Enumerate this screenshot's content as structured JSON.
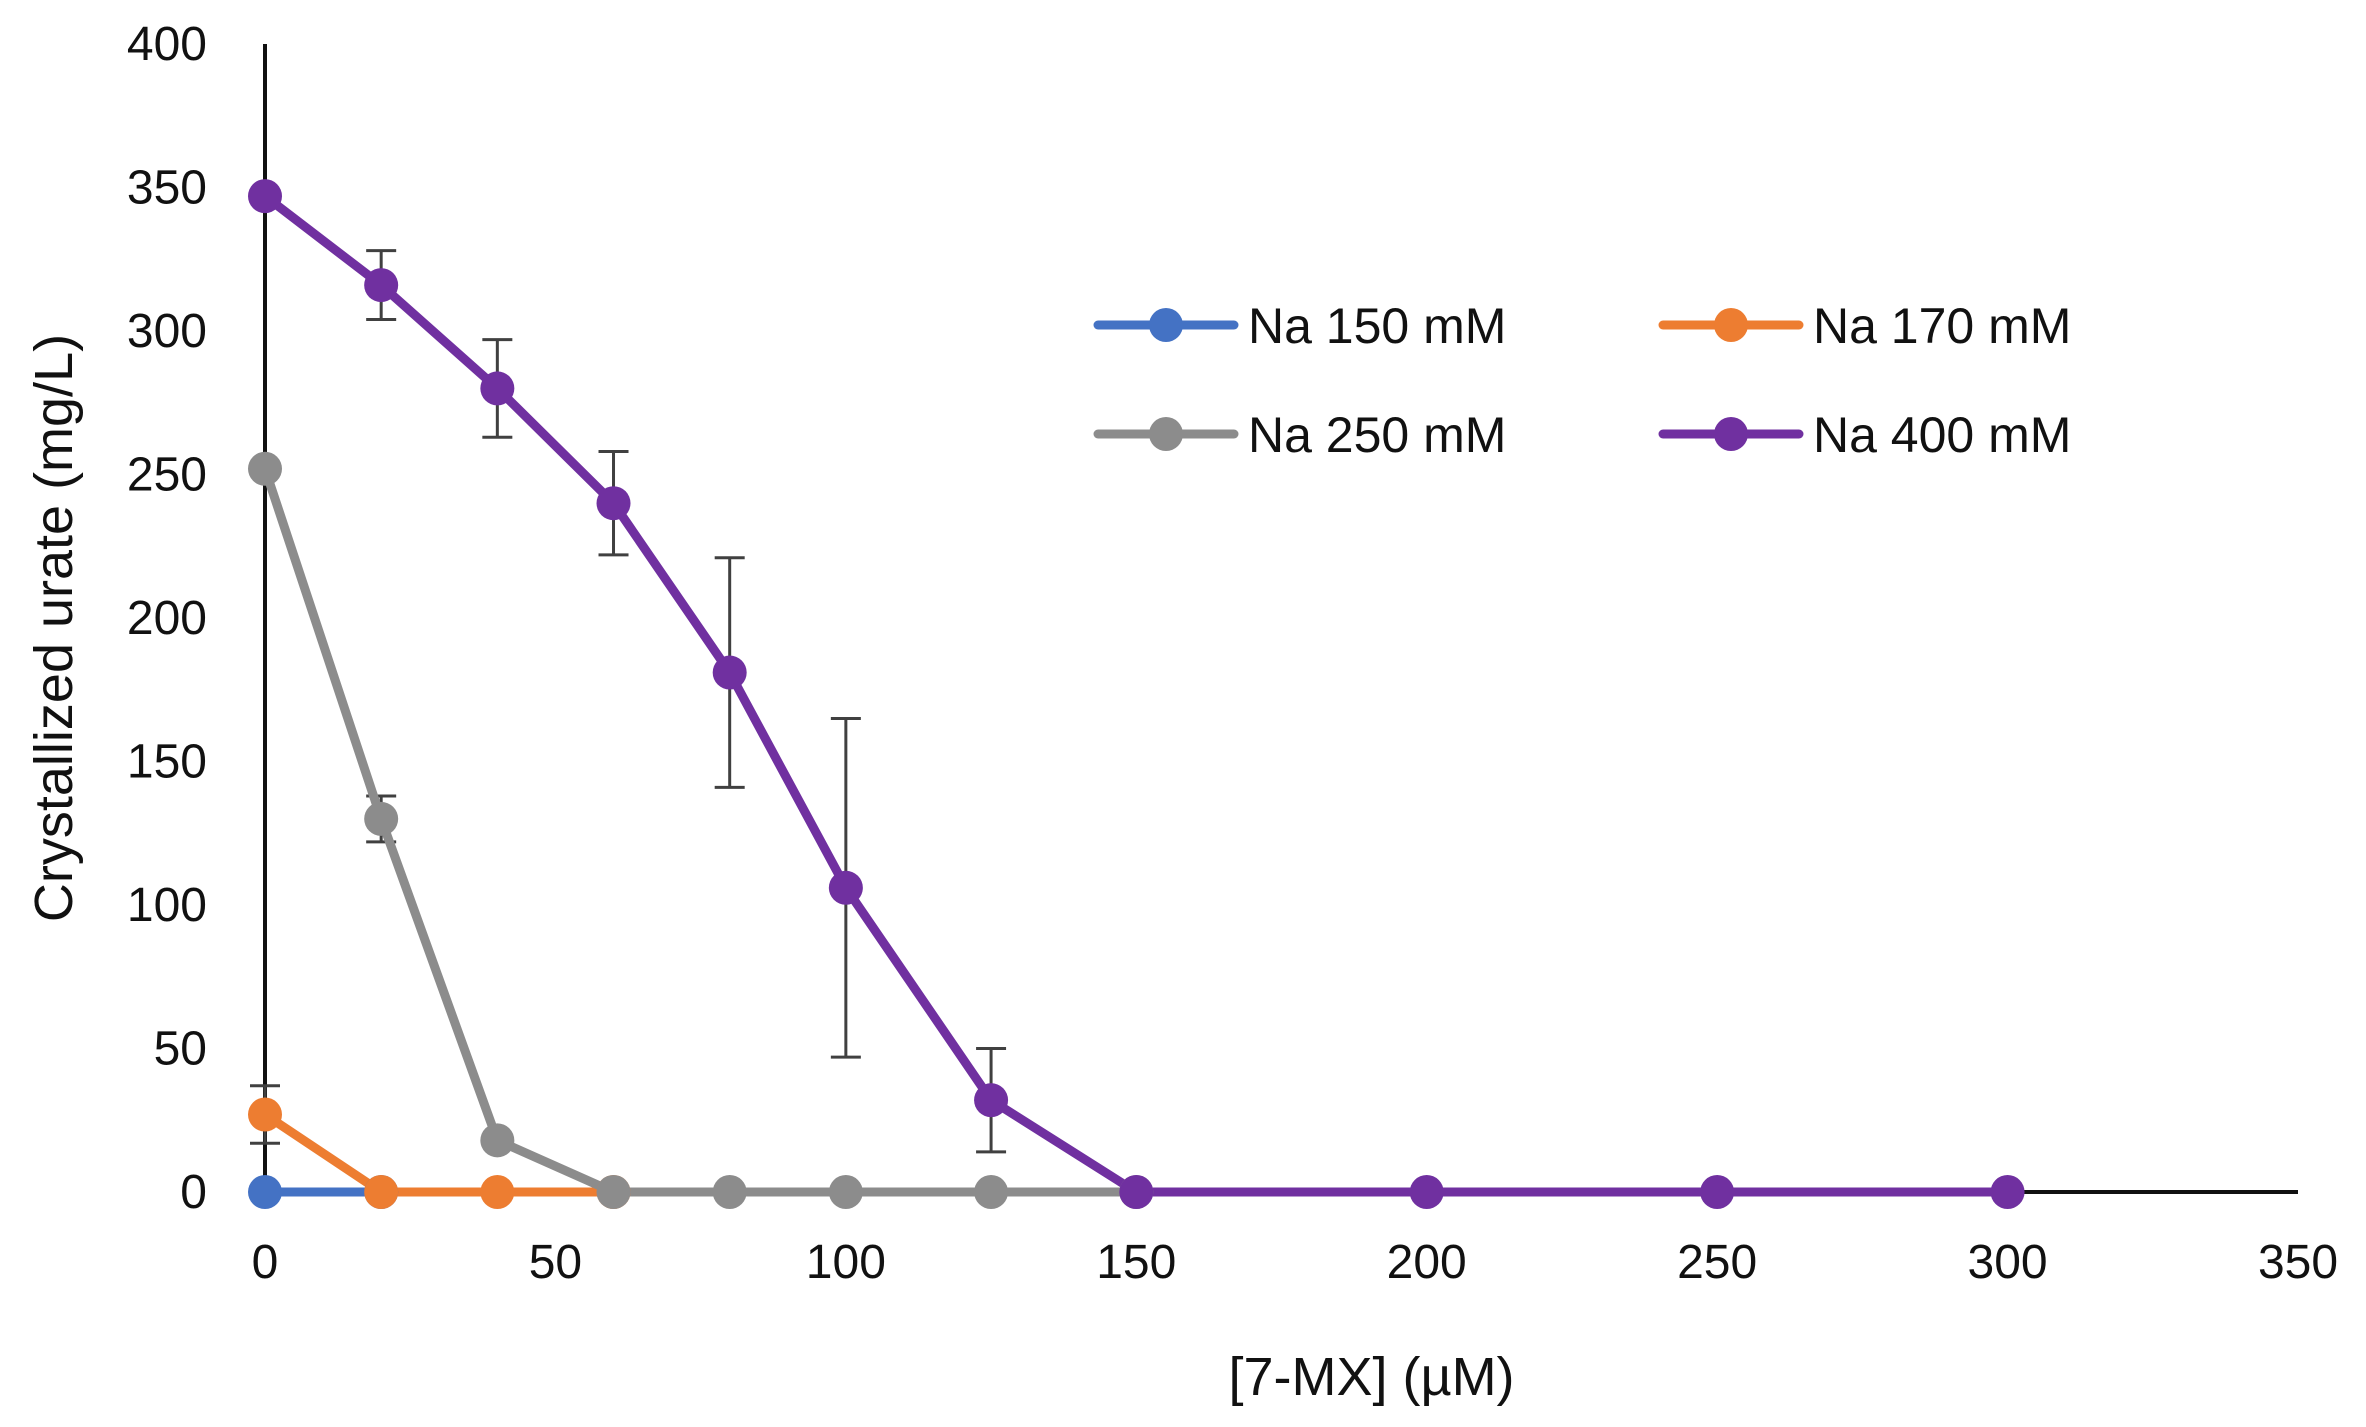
{
  "chart_data": {
    "type": "line",
    "title": "",
    "xlabel": "[7-MX] (µM)",
    "ylabel": "Crystallized urate (mg/L)",
    "xlim": [
      0,
      350
    ],
    "ylim": [
      0,
      400
    ],
    "xticks": [
      0,
      50,
      100,
      150,
      200,
      250,
      300,
      350
    ],
    "yticks": [
      0,
      50,
      100,
      150,
      200,
      250,
      300,
      350,
      400
    ],
    "grid": false,
    "legend_position": "top-right",
    "series": [
      {
        "name": "Na 150 mM",
        "color": "#4472C4",
        "x": [
          0,
          20
        ],
        "y": [
          0,
          0
        ],
        "err": [
          0,
          0
        ]
      },
      {
        "name": "Na 170 mM",
        "color": "#ED7D31",
        "x": [
          0,
          20,
          40,
          60
        ],
        "y": [
          27,
          0,
          0,
          0
        ],
        "err": [
          10,
          0,
          0,
          0
        ]
      },
      {
        "name": "Na 250 mM",
        "color": "#8C8C8C",
        "x": [
          0,
          20,
          40,
          60,
          80,
          100,
          125,
          150
        ],
        "y": [
          252,
          130,
          18,
          0,
          0,
          0,
          0,
          0
        ],
        "err": [
          0,
          8,
          0,
          0,
          0,
          0,
          0,
          0
        ]
      },
      {
        "name": "Na 400 mM",
        "color": "#7030A0",
        "x": [
          0,
          20,
          40,
          60,
          80,
          100,
          125,
          150,
          200,
          250,
          300
        ],
        "y": [
          347,
          316,
          280,
          240,
          181,
          106,
          32,
          0,
          0,
          0,
          0
        ],
        "err": [
          0,
          12,
          17,
          18,
          40,
          59,
          18,
          0,
          0,
          0,
          0
        ]
      }
    ]
  }
}
